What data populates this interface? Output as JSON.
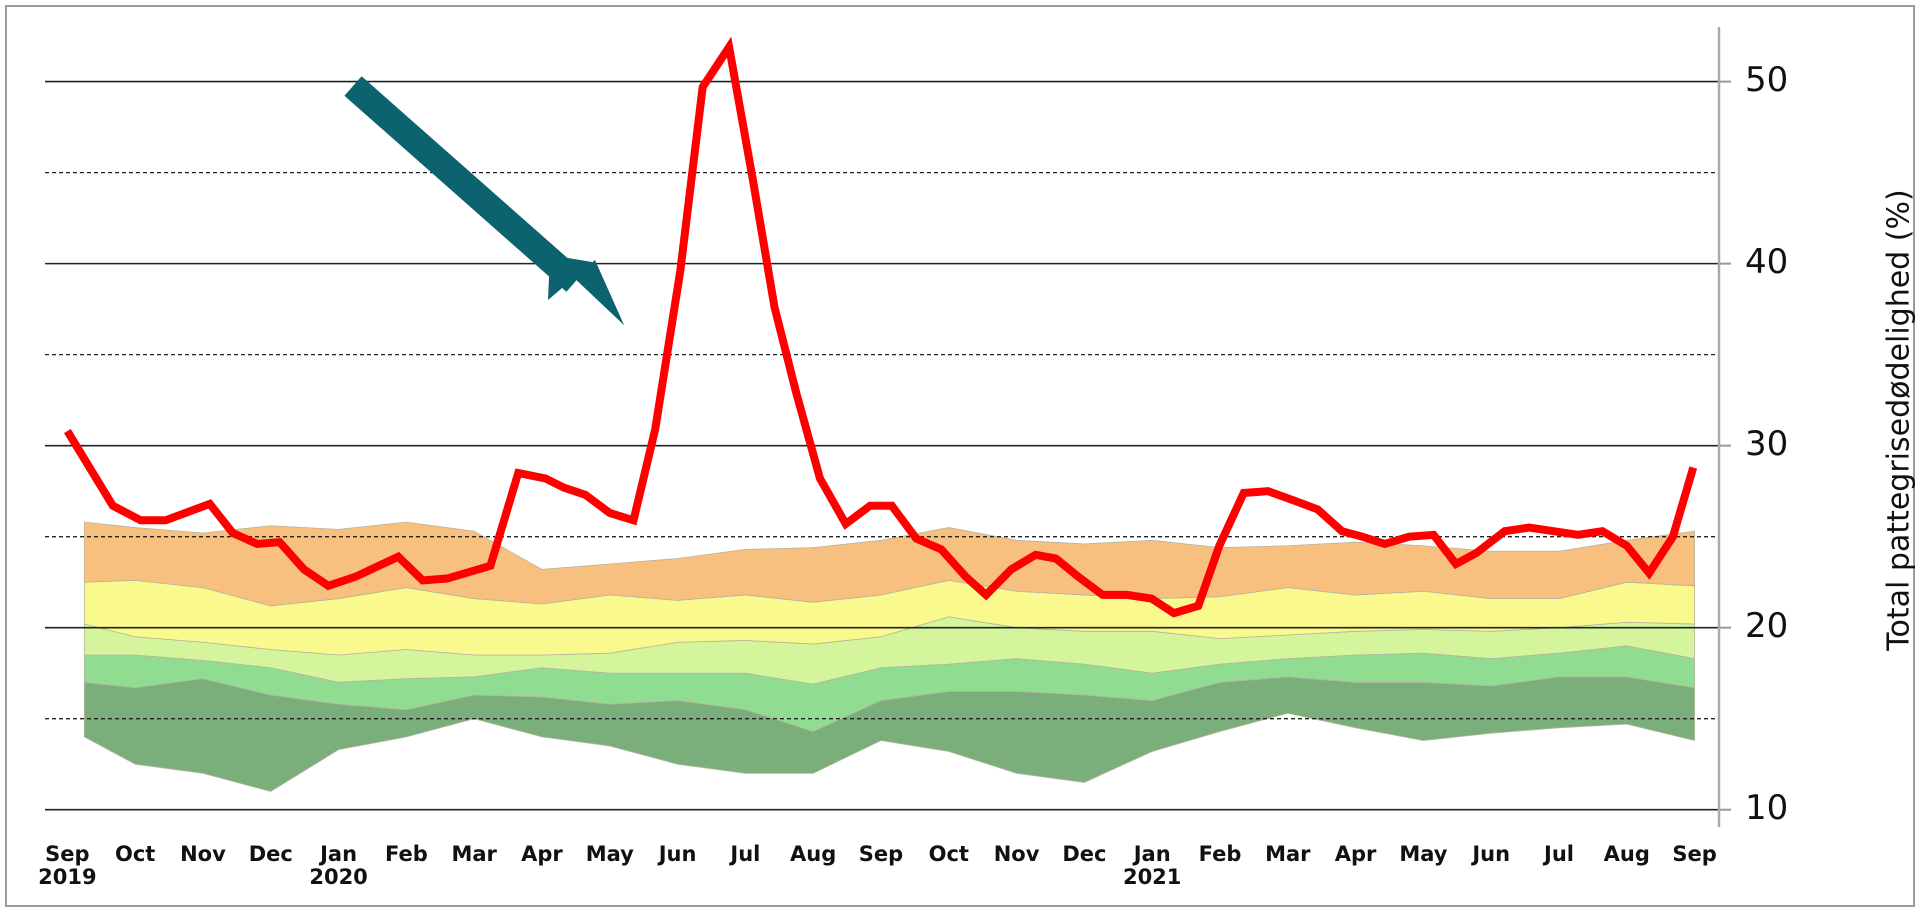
{
  "chart_data": {
    "type": "line",
    "y_label": "Total pattegrisedødelighed (%)",
    "ylim": [
      9.05,
      53
    ],
    "yticks": [
      10,
      20,
      30,
      40,
      50
    ],
    "minor_yticks": [
      15,
      25,
      35,
      45
    ],
    "grid": true,
    "xlim": [
      -0.33,
      24.36
    ],
    "xticks": [
      {
        "value": 0,
        "label": "Sep"
      },
      {
        "value": 1,
        "label": "Oct"
      },
      {
        "value": 2,
        "label": "Nov"
      },
      {
        "value": 3,
        "label": "Dec"
      },
      {
        "value": 4,
        "label": "Jan"
      },
      {
        "value": 5,
        "label": "Feb"
      },
      {
        "value": 6,
        "label": "Mar"
      },
      {
        "value": 7,
        "label": "Apr"
      },
      {
        "value": 8,
        "label": "May"
      },
      {
        "value": 9,
        "label": "Jun"
      },
      {
        "value": 10,
        "label": "Jul"
      },
      {
        "value": 11,
        "label": "Aug"
      },
      {
        "value": 12,
        "label": "Sep"
      },
      {
        "value": 13,
        "label": "Oct"
      },
      {
        "value": 14,
        "label": "Nov"
      },
      {
        "value": 15,
        "label": "Dec"
      },
      {
        "value": 16,
        "label": "Jan"
      },
      {
        "value": 17,
        "label": "Feb"
      },
      {
        "value": 18,
        "label": "Mar"
      },
      {
        "value": 19,
        "label": "Apr"
      },
      {
        "value": 20,
        "label": "May"
      },
      {
        "value": 21,
        "label": "Jun"
      },
      {
        "value": 22,
        "label": "Jul"
      },
      {
        "value": 23,
        "label": "Aug"
      },
      {
        "value": 24,
        "label": "Sep"
      }
    ],
    "year_labels": [
      {
        "value": 0,
        "label": "2019"
      },
      {
        "value": 4,
        "label": "2020"
      },
      {
        "value": 16,
        "label": "2021"
      }
    ],
    "bands": {
      "x": [
        0.25,
        1,
        2,
        3,
        4,
        5,
        6,
        7,
        8,
        9,
        10,
        11,
        12,
        13,
        14,
        15,
        16,
        17,
        18,
        19,
        20,
        21,
        22,
        23,
        24
      ],
      "colors": [
        "#7aae7a",
        "#90dc90",
        "#d4f59c",
        "#f9f98e",
        "#f8c07e"
      ],
      "lines": [
        [
          14,
          12.5,
          12,
          11,
          13.3,
          14,
          15,
          14,
          13.5,
          12.5,
          12,
          12,
          13.8,
          13.2,
          12,
          11.5,
          13.2,
          14.3,
          15.3,
          14.5,
          13.8,
          14.2,
          14.5,
          14.7,
          13.8
        ],
        [
          17,
          16.7,
          17.2,
          16.3,
          15.8,
          15.5,
          16.3,
          16.2,
          15.8,
          16,
          15.5,
          14.3,
          16,
          16.5,
          16.5,
          16.3,
          16,
          17,
          17.3,
          17,
          17,
          16.8,
          17.3,
          17.3,
          16.7
        ],
        [
          18.5,
          18.5,
          18.2,
          17.8,
          17,
          17.2,
          17.3,
          17.8,
          17.5,
          17.5,
          17.5,
          16.9,
          17.8,
          18,
          18.3,
          18,
          17.5,
          18,
          18.3,
          18.5,
          18.6,
          18.3,
          18.6,
          19,
          18.3
        ],
        [
          20.2,
          19.5,
          19.2,
          18.8,
          18.5,
          18.8,
          18.5,
          18.5,
          18.6,
          19.2,
          19.3,
          19.1,
          19.5,
          20.6,
          20,
          19.8,
          19.8,
          19.4,
          19.6,
          19.8,
          19.9,
          19.8,
          20,
          20.3,
          20.2
        ],
        [
          22.5,
          22.6,
          22.2,
          21.2,
          21.6,
          22.2,
          21.6,
          21.3,
          21.8,
          21.5,
          21.8,
          21.4,
          21.8,
          22.6,
          22,
          21.8,
          21.6,
          21.7,
          22.2,
          21.8,
          22,
          21.6,
          21.6,
          22.5,
          22.3
        ],
        [
          25.8,
          25.5,
          25.2,
          25.6,
          25.4,
          25.8,
          25.3,
          23.2,
          23.5,
          23.8,
          24.3,
          24.4,
          24.8,
          25.5,
          24.8,
          24.6,
          24.8,
          24.4,
          24.5,
          24.7,
          24.5,
          24.2,
          24.2,
          24.8,
          25.3
        ]
      ]
    },
    "series": [
      {
        "color": "#ff0000",
        "x": [
          0,
          0.67,
          1.08,
          1.45,
          2.1,
          2.44,
          2.8,
          3.13,
          3.49,
          3.85,
          4.25,
          4.88,
          5.24,
          5.6,
          6.24,
          6.65,
          7.05,
          7.32,
          7.64,
          8.0,
          8.35,
          8.67,
          9.04,
          9.37,
          9.76,
          10.12,
          10.43,
          10.75,
          11.1,
          11.48,
          11.84,
          12.16,
          12.52,
          12.89,
          13.25,
          13.55,
          13.92,
          14.28,
          14.58,
          14.91,
          15.27,
          15.63,
          15.99,
          16.32,
          16.68,
          16.99,
          17.35,
          17.71,
          18.08,
          18.44,
          18.8,
          19.1,
          19.43,
          19.79,
          20.15,
          20.48,
          20.78,
          21.2,
          21.56,
          21.92,
          22.28,
          22.64,
          23.0,
          23.33,
          23.68,
          23.98
        ],
        "values": [
          30.8,
          26.7,
          25.9,
          25.9,
          26.8,
          25.2,
          24.6,
          24.7,
          23.2,
          22.3,
          22.8,
          23.9,
          22.6,
          22.7,
          23.4,
          28.5,
          28.2,
          27.7,
          27.3,
          26.3,
          25.9,
          30.9,
          39.6,
          49.7,
          51.9,
          44.4,
          37.6,
          32.9,
          28.2,
          25.7,
          26.7,
          26.7,
          24.9,
          24.3,
          22.8,
          21.8,
          23.2,
          24.0,
          23.8,
          22.8,
          21.8,
          21.8,
          21.6,
          20.8,
          21.2,
          24.5,
          27.4,
          27.5,
          27.0,
          26.5,
          25.3,
          25.0,
          24.6,
          25.0,
          25.1,
          23.5,
          24.1,
          25.3,
          25.5,
          25.3,
          25.1,
          25.3,
          24.5,
          23.0,
          25.0,
          28.8
        ]
      }
    ]
  }
}
